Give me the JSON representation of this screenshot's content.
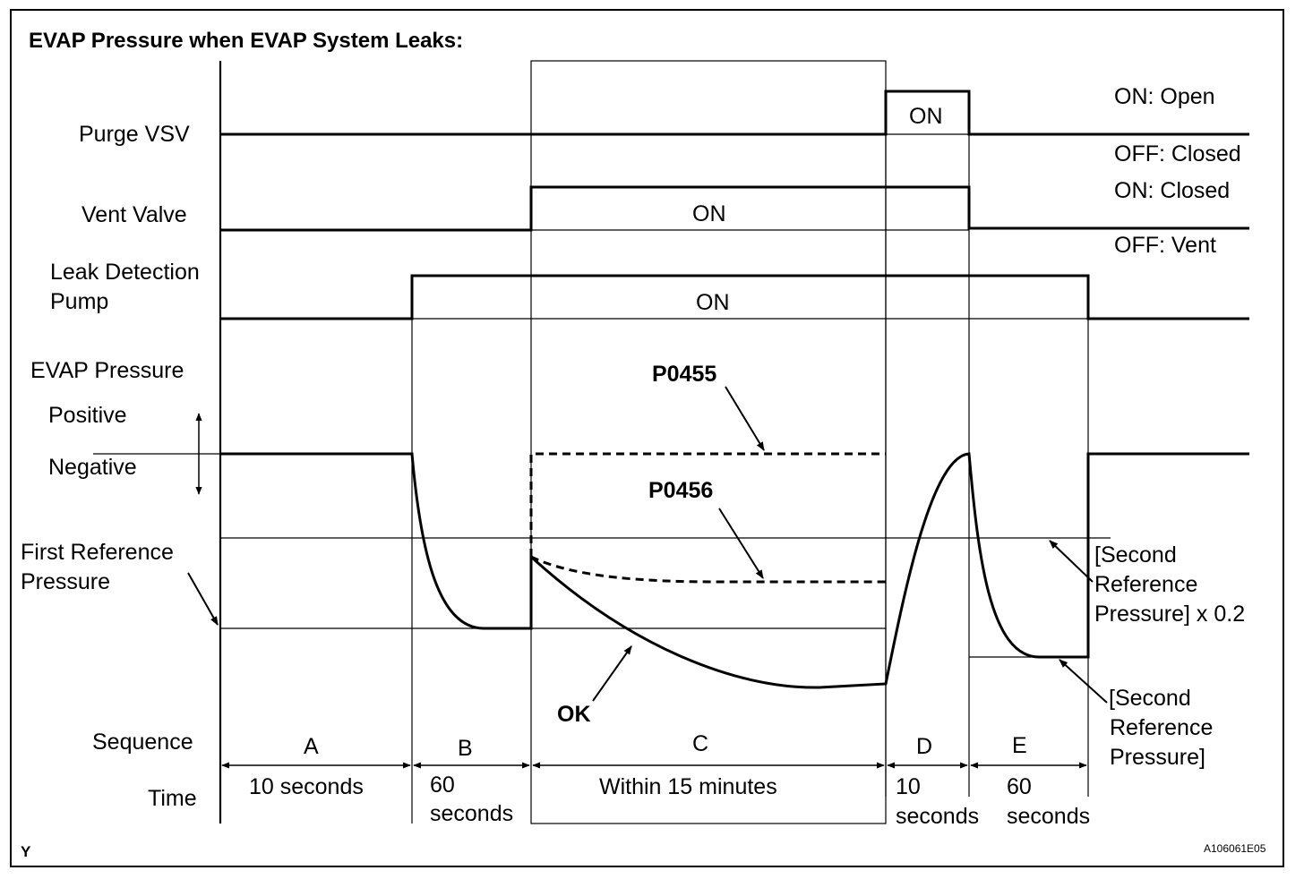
{
  "title": "EVAP Pressure when EVAP System Leaks:",
  "rows": {
    "purge_vsv": "Purge VSV",
    "vent_valve": "Vent Valve",
    "leak_pump_1": "Leak Detection",
    "leak_pump_2": "Pump",
    "evap_pressure": "EVAP Pressure",
    "positive": "Positive",
    "negative": "Negative",
    "first_ref_1": "First Reference",
    "first_ref_2": "Pressure",
    "sequence": "Sequence",
    "time": "Time"
  },
  "states": {
    "purge_on": "ON",
    "vent_on": "ON",
    "pump_on": "ON",
    "purge_on_legend": "ON: Open",
    "purge_off_legend": "OFF: Closed",
    "vent_on_legend": "ON: Closed",
    "vent_off_legend": "OFF: Vent"
  },
  "annotations": {
    "p0455": "P0455",
    "p0456": "P0456",
    "ok": "OK",
    "second_ref_x02_1": "[Second",
    "second_ref_x02_2": "Reference",
    "second_ref_x02_3": "Pressure] x 0.2",
    "second_ref_1": "[Second",
    "second_ref_2": "Reference",
    "second_ref_3": "Pressure]"
  },
  "sequence": [
    {
      "label": "A",
      "time_1": "10 seconds",
      "time_2": ""
    },
    {
      "label": "B",
      "time_1": "60",
      "time_2": "seconds"
    },
    {
      "label": "C",
      "time_1": "Within 15 minutes",
      "time_2": ""
    },
    {
      "label": "D",
      "time_1": "10",
      "time_2": "seconds"
    },
    {
      "label": "E",
      "time_1": "60",
      "time_2": "seconds"
    }
  ],
  "footer": {
    "left_mark": "Y",
    "figure_id": "A106061E05"
  }
}
